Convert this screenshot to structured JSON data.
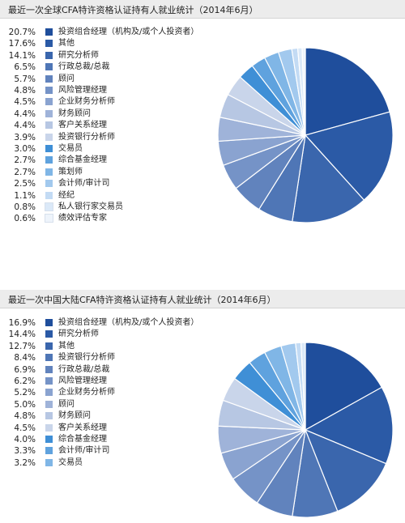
{
  "chart_data": [
    {
      "type": "pie",
      "title": "最近一次全球CFA特许资格认证持有人就业统计（2014年6月）",
      "slices": [
        {
          "label": "投资组合经理（机构及/或个人投资者）",
          "pct_text": "20.7%",
          "value": 20.7,
          "color": "#1f4e9c"
        },
        {
          "label": "其他",
          "pct_text": "17.6%",
          "value": 17.6,
          "color": "#2b5aa6"
        },
        {
          "label": "研究分析师",
          "pct_text": "14.1%",
          "value": 14.1,
          "color": "#3a66ad"
        },
        {
          "label": "行政总裁/总裁",
          "pct_text": "6.5%",
          "value": 6.5,
          "color": "#4f76b6"
        },
        {
          "label": "顾问",
          "pct_text": "5.7%",
          "value": 5.7,
          "color": "#6183bd"
        },
        {
          "label": "风险管理经理",
          "pct_text": "4.8%",
          "value": 4.8,
          "color": "#7593c7"
        },
        {
          "label": "企业财务分析师",
          "pct_text": "4.5%",
          "value": 4.5,
          "color": "#8aa3d0"
        },
        {
          "label": "财务顾问",
          "pct_text": "4.4%",
          "value": 4.4,
          "color": "#9fb3d9"
        },
        {
          "label": "客户关系经理",
          "pct_text": "4.4%",
          "value": 4.4,
          "color": "#b7c7e3"
        },
        {
          "label": "投资银行分析师",
          "pct_text": "3.9%",
          "value": 3.9,
          "color": "#c9d5ea"
        },
        {
          "label": "交易员",
          "pct_text": "3.0%",
          "value": 3.0,
          "color": "#3f8fd6"
        },
        {
          "label": "综合基金经理",
          "pct_text": "2.7%",
          "value": 2.7,
          "color": "#5fa2de"
        },
        {
          "label": "策划师",
          "pct_text": "2.7%",
          "value": 2.7,
          "color": "#80b6e6"
        },
        {
          "label": "会计师/审计司",
          "pct_text": "2.5%",
          "value": 2.5,
          "color": "#a2c9ee"
        },
        {
          "label": "经纪",
          "pct_text": "1.1%",
          "value": 1.1,
          "color": "#c3dbf4"
        },
        {
          "label": "私人银行家交易员",
          "pct_text": "0.8%",
          "value": 0.8,
          "color": "#dbe9f8"
        },
        {
          "label": "绩效评估专家",
          "pct_text": "0.6%",
          "value": 0.6,
          "color": "#eef4fb"
        }
      ]
    },
    {
      "type": "pie",
      "title": "最近一次中国大陆CFA特许资格认证持有人就业统计（2014年6月）",
      "slices": [
        {
          "label": "投资组合经理（机构及/或个人投资者）",
          "pct_text": "16.9%",
          "value": 16.9,
          "color": "#1f4e9c"
        },
        {
          "label": "研究分析师",
          "pct_text": "14.4%",
          "value": 14.4,
          "color": "#2b5aa6"
        },
        {
          "label": "其他",
          "pct_text": "12.7%",
          "value": 12.7,
          "color": "#3a66ad"
        },
        {
          "label": "投资银行分析师",
          "pct_text": "8.4%",
          "value": 8.4,
          "color": "#4f76b6"
        },
        {
          "label": "行政总裁/总裁",
          "pct_text": "6.9%",
          "value": 6.9,
          "color": "#6183bd"
        },
        {
          "label": "风险管理经理",
          "pct_text": "6.2%",
          "value": 6.2,
          "color": "#7593c7"
        },
        {
          "label": "企业财务分析师",
          "pct_text": "5.2%",
          "value": 5.2,
          "color": "#8aa3d0"
        },
        {
          "label": "顾问",
          "pct_text": "5.0%",
          "value": 5.0,
          "color": "#9fb3d9"
        },
        {
          "label": "财务顾问",
          "pct_text": "4.8%",
          "value": 4.8,
          "color": "#b7c7e3"
        },
        {
          "label": "客户关系经理",
          "pct_text": "4.5%",
          "value": 4.5,
          "color": "#c9d5ea"
        },
        {
          "label": "综合基金经理",
          "pct_text": "4.0%",
          "value": 4.0,
          "color": "#3f8fd6"
        },
        {
          "label": "会计师/审计司",
          "pct_text": "3.3%",
          "value": 3.3,
          "color": "#5fa2de"
        },
        {
          "label": "交易员",
          "pct_text": "3.2%",
          "value": 3.2,
          "color": "#80b6e6"
        },
        {
          "pct_text": "",
          "value": 2.7,
          "color": "#a2c9ee"
        },
        {
          "pct_text": "",
          "value": 1.0,
          "color": "#c3dbf4"
        },
        {
          "pct_text": "",
          "value": 0.8,
          "color": "#dbe9f8"
        }
      ]
    }
  ]
}
